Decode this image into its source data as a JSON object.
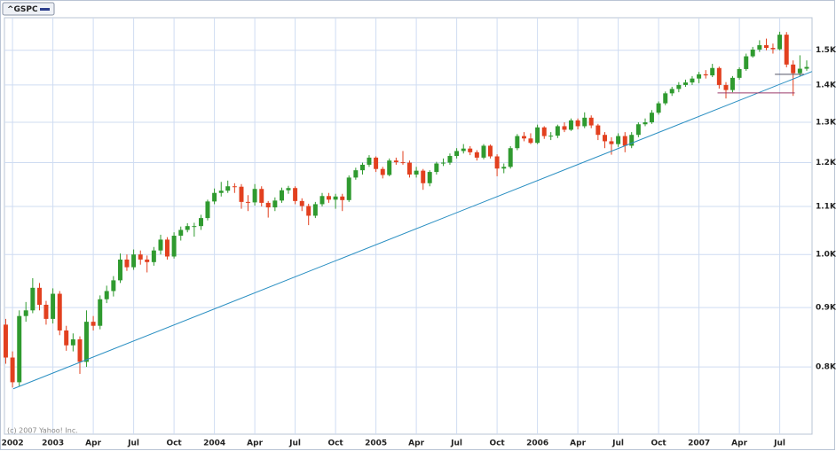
{
  "chart_data": {
    "type": "candlestick",
    "title": "^GSPC",
    "credit": "(c) 2007 Yahoo! Inc.",
    "up_color": "#2f9a2f",
    "down_color": "#e2401f",
    "log_y": true,
    "grid": true,
    "xlim": [
      2002.7,
      2007.7
    ],
    "ylim": [
      700,
      1600
    ],
    "xticks": [
      {
        "value": 2002.75,
        "label": "2002"
      },
      2003,
      {
        "value": 2003.25,
        "label": "Apr"
      },
      {
        "value": 2003.5,
        "label": "Jul"
      },
      {
        "value": 2003.75,
        "label": "Oct"
      },
      2004,
      {
        "value": 2004.25,
        "label": "Apr"
      },
      {
        "value": 2004.5,
        "label": "Jul"
      },
      {
        "value": 2004.75,
        "label": "Oct"
      },
      2005,
      {
        "value": 2005.25,
        "label": "Apr"
      },
      {
        "value": 2005.5,
        "label": "Jul"
      },
      {
        "value": 2005.75,
        "label": "Oct"
      },
      2006,
      {
        "value": 2006.25,
        "label": "Apr"
      },
      {
        "value": 2006.5,
        "label": "Jul"
      },
      {
        "value": 2006.75,
        "label": "Oct"
      },
      2007,
      {
        "value": 2007.25,
        "label": "Apr"
      },
      {
        "value": 2007.5,
        "label": "Jul"
      }
    ],
    "yticks": [
      {
        "value": 800,
        "label": "0.8K"
      },
      {
        "value": 900,
        "label": "0.9K"
      },
      {
        "value": 1000,
        "label": "1.0K"
      },
      {
        "value": 1100,
        "label": "1.1K"
      },
      {
        "value": 1200,
        "label": "1.2K"
      },
      {
        "value": 1300,
        "label": "1.3K"
      },
      {
        "value": 1400,
        "label": "1.4K"
      },
      {
        "value": 1500,
        "label": "1.5K"
      }
    ],
    "x": [
      2002.708,
      2002.75,
      2002.792,
      2002.833,
      2002.875,
      2002.917,
      2002.958,
      2003.0,
      2003.042,
      2003.083,
      2003.125,
      2003.167,
      2003.208,
      2003.25,
      2003.292,
      2003.333,
      2003.375,
      2003.417,
      2003.458,
      2003.5,
      2003.542,
      2003.583,
      2003.625,
      2003.667,
      2003.708,
      2003.75,
      2003.792,
      2003.833,
      2003.875,
      2003.917,
      2003.958,
      2004.0,
      2004.042,
      2004.083,
      2004.125,
      2004.167,
      2004.208,
      2004.25,
      2004.292,
      2004.333,
      2004.375,
      2004.417,
      2004.458,
      2004.5,
      2004.542,
      2004.583,
      2004.625,
      2004.667,
      2004.708,
      2004.75,
      2004.792,
      2004.833,
      2004.875,
      2004.917,
      2004.958,
      2005.0,
      2005.042,
      2005.083,
      2005.125,
      2005.167,
      2005.208,
      2005.25,
      2005.292,
      2005.333,
      2005.375,
      2005.417,
      2005.458,
      2005.5,
      2005.542,
      2005.583,
      2005.625,
      2005.667,
      2005.708,
      2005.75,
      2005.792,
      2005.833,
      2005.875,
      2005.917,
      2005.958,
      2006.0,
      2006.042,
      2006.083,
      2006.125,
      2006.167,
      2006.208,
      2006.25,
      2006.292,
      2006.333,
      2006.375,
      2006.417,
      2006.458,
      2006.5,
      2006.542,
      2006.583,
      2006.625,
      2006.667,
      2006.708,
      2006.75,
      2006.792,
      2006.833,
      2006.875,
      2006.917,
      2006.958,
      2007.0,
      2007.042,
      2007.083,
      2007.125,
      2007.167,
      2007.208,
      2007.25,
      2007.292,
      2007.333,
      2007.375,
      2007.417,
      2007.458,
      2007.5,
      2007.542,
      2007.583,
      2007.625,
      2007.667
    ],
    "open": [
      870,
      815,
      776,
      885,
      895,
      936,
      905,
      880,
      925,
      860,
      835,
      845,
      808,
      875,
      868,
      915,
      930,
      950,
      990,
      975,
      1000,
      990,
      985,
      1008,
      1030,
      996,
      1038,
      1050,
      1058,
      1058,
      1075,
      1111,
      1130,
      1135,
      1145,
      1144,
      1110,
      1109,
      1139,
      1108,
      1098,
      1113,
      1136,
      1141,
      1112,
      1101,
      1080,
      1105,
      1123,
      1115,
      1122,
      1114,
      1165,
      1182,
      1195,
      1212,
      1185,
      1171,
      1205,
      1201,
      1200,
      1172,
      1181,
      1152,
      1178,
      1198,
      1200,
      1216,
      1228,
      1234,
      1225,
      1212,
      1241,
      1215,
      1186,
      1190,
      1235,
      1265,
      1259,
      1248,
      1287,
      1265,
      1266,
      1290,
      1281,
      1305,
      1290,
      1312,
      1292,
      1268,
      1252,
      1245,
      1265,
      1241,
      1268,
      1295,
      1300,
      1325,
      1350,
      1377,
      1389,
      1400,
      1407,
      1418,
      1430,
      1427,
      1448,
      1400,
      1386,
      1420,
      1445,
      1482,
      1502,
      1515,
      1507,
      1503,
      1547,
      1458,
      1433,
      1446
    ],
    "high": [
      880,
      825,
      895,
      910,
      954,
      945,
      912,
      935,
      930,
      868,
      855,
      850,
      895,
      885,
      922,
      940,
      958,
      1002,
      1000,
      1010,
      1008,
      998,
      1015,
      1040,
      1035,
      1045,
      1057,
      1064,
      1065,
      1082,
      1115,
      1140,
      1155,
      1158,
      1152,
      1150,
      1125,
      1150,
      1145,
      1112,
      1120,
      1142,
      1146,
      1145,
      1118,
      1106,
      1110,
      1130,
      1130,
      1128,
      1128,
      1170,
      1188,
      1200,
      1218,
      1215,
      1190,
      1210,
      1212,
      1228,
      1205,
      1190,
      1185,
      1182,
      1202,
      1210,
      1222,
      1235,
      1245,
      1240,
      1230,
      1245,
      1244,
      1220,
      1198,
      1240,
      1270,
      1275,
      1272,
      1294,
      1290,
      1275,
      1294,
      1300,
      1310,
      1310,
      1326,
      1318,
      1296,
      1275,
      1262,
      1272,
      1275,
      1275,
      1300,
      1310,
      1332,
      1355,
      1382,
      1395,
      1408,
      1415,
      1425,
      1437,
      1442,
      1460,
      1452,
      1408,
      1425,
      1450,
      1490,
      1510,
      1530,
      1535,
      1520,
      1556,
      1555,
      1470,
      1485,
      1470
    ],
    "low": [
      805,
      768,
      770,
      875,
      890,
      895,
      870,
      872,
      852,
      826,
      825,
      789,
      800,
      860,
      862,
      908,
      920,
      945,
      968,
      970,
      980,
      965,
      978,
      1000,
      990,
      992,
      1028,
      1045,
      1036,
      1050,
      1070,
      1105,
      1122,
      1130,
      1130,
      1095,
      1090,
      1102,
      1100,
      1076,
      1090,
      1108,
      1128,
      1105,
      1090,
      1060,
      1075,
      1100,
      1108,
      1095,
      1090,
      1110,
      1160,
      1172,
      1190,
      1178,
      1163,
      1168,
      1195,
      1195,
      1165,
      1165,
      1137,
      1145,
      1172,
      1192,
      1195,
      1210,
      1222,
      1218,
      1205,
      1208,
      1210,
      1168,
      1175,
      1186,
      1230,
      1252,
      1245,
      1245,
      1258,
      1255,
      1260,
      1275,
      1278,
      1282,
      1285,
      1285,
      1255,
      1235,
      1219,
      1238,
      1225,
      1235,
      1262,
      1290,
      1296,
      1320,
      1345,
      1370,
      1380,
      1395,
      1400,
      1405,
      1418,
      1422,
      1390,
      1363,
      1380,
      1415,
      1440,
      1478,
      1495,
      1500,
      1490,
      1500,
      1450,
      1370,
      1425,
      1440
    ],
    "close": [
      815,
      776,
      885,
      895,
      936,
      905,
      880,
      925,
      860,
      835,
      845,
      808,
      875,
      868,
      915,
      930,
      950,
      990,
      975,
      1000,
      990,
      985,
      1008,
      1030,
      996,
      1038,
      1050,
      1058,
      1058,
      1075,
      1111,
      1130,
      1135,
      1145,
      1144,
      1110,
      1109,
      1139,
      1108,
      1098,
      1113,
      1136,
      1141,
      1112,
      1101,
      1080,
      1105,
      1123,
      1115,
      1122,
      1114,
      1165,
      1182,
      1195,
      1212,
      1185,
      1171,
      1205,
      1201,
      1200,
      1172,
      1181,
      1152,
      1178,
      1198,
      1200,
      1216,
      1228,
      1234,
      1225,
      1212,
      1241,
      1215,
      1186,
      1190,
      1235,
      1265,
      1259,
      1248,
      1287,
      1265,
      1266,
      1290,
      1281,
      1305,
      1290,
      1312,
      1292,
      1268,
      1252,
      1245,
      1265,
      1241,
      1268,
      1295,
      1300,
      1325,
      1350,
      1377,
      1389,
      1400,
      1407,
      1418,
      1430,
      1427,
      1448,
      1400,
      1386,
      1420,
      1445,
      1482,
      1502,
      1515,
      1507,
      1503,
      1547,
      1458,
      1433,
      1446,
      1451
    ],
    "lines": [
      {
        "x": [
          2002.755,
          2007.7
        ],
        "y": [
          766,
          1438
        ],
        "color": "#2a8fc2"
      },
      {
        "x": [
          2007.115,
          2007.593
        ],
        "y": [
          1378,
          1378
        ],
        "color": "#9b3a6a"
      },
      {
        "x": [
          2007.47,
          2007.65
        ],
        "y": [
          1430,
          1430
        ],
        "color": "#555566"
      }
    ]
  }
}
